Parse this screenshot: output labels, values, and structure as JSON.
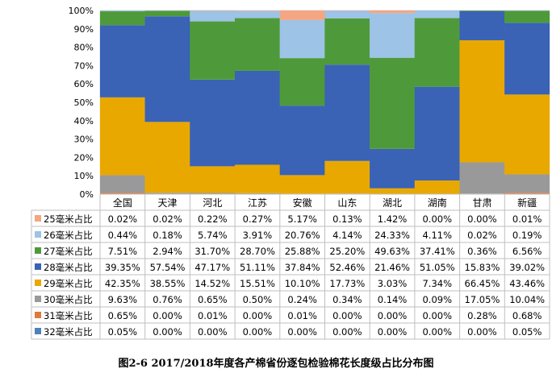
{
  "chart_data": {
    "type": "bar",
    "stacked": true,
    "percent": true,
    "grid": true,
    "ylim": [
      0,
      100
    ],
    "yticks": [
      "0%",
      "10%",
      "20%",
      "30%",
      "40%",
      "50%",
      "60%",
      "70%",
      "80%",
      "90%",
      "100%"
    ],
    "categories": [
      "全国",
      "天津",
      "河北",
      "江苏",
      "安徽",
      "山东",
      "湖北",
      "湖南",
      "甘肃",
      "新疆"
    ],
    "series": [
      {
        "name": "25毫米占比",
        "color": "#f4a582",
        "labels": [
          "0.02%",
          "0.02%",
          "0.22%",
          "0.27%",
          "5.17%",
          "0.13%",
          "1.42%",
          "0.00%",
          "0.00%",
          "0.01%"
        ],
        "values": [
          0.02,
          0.02,
          0.22,
          0.27,
          5.17,
          0.13,
          1.42,
          0.0,
          0.0,
          0.01
        ]
      },
      {
        "name": "26毫米占比",
        "color": "#9dc3e6",
        "labels": [
          "0.44%",
          "0.18%",
          "5.74%",
          "3.91%",
          "20.76%",
          "4.14%",
          "24.33%",
          "4.11%",
          "0.02%",
          "0.19%"
        ],
        "values": [
          0.44,
          0.18,
          5.74,
          3.91,
          20.76,
          4.14,
          24.33,
          4.11,
          0.02,
          0.19
        ]
      },
      {
        "name": "27毫米占比",
        "color": "#4e9a3a",
        "labels": [
          "7.51%",
          "2.94%",
          "31.70%",
          "28.70%",
          "25.88%",
          "25.20%",
          "49.63%",
          "37.41%",
          "0.36%",
          "6.56%"
        ],
        "values": [
          7.51,
          2.94,
          31.7,
          28.7,
          25.88,
          25.2,
          49.63,
          37.41,
          0.36,
          6.56
        ]
      },
      {
        "name": "28毫米占比",
        "color": "#3a62b5",
        "labels": [
          "39.35%",
          "57.54%",
          "47.17%",
          "51.11%",
          "37.84%",
          "52.46%",
          "21.46%",
          "51.05%",
          "15.83%",
          "39.02%"
        ],
        "values": [
          39.35,
          57.54,
          47.17,
          51.11,
          37.84,
          52.46,
          21.46,
          51.05,
          15.83,
          39.02
        ]
      },
      {
        "name": "29毫米占比",
        "color": "#e8a800",
        "labels": [
          "42.35%",
          "38.55%",
          "14.52%",
          "15.51%",
          "10.10%",
          "17.73%",
          "3.03%",
          "7.34%",
          "66.45%",
          "43.46%"
        ],
        "values": [
          42.35,
          38.55,
          14.52,
          15.51,
          10.1,
          17.73,
          3.03,
          7.34,
          66.45,
          43.46
        ]
      },
      {
        "name": "30毫米占比",
        "color": "#999999",
        "labels": [
          "9.63%",
          "0.76%",
          "0.65%",
          "0.50%",
          "0.24%",
          "0.34%",
          "0.14%",
          "0.09%",
          "17.05%",
          "10.04%"
        ],
        "values": [
          9.63,
          0.76,
          0.65,
          0.5,
          0.24,
          0.34,
          0.14,
          0.09,
          17.05,
          10.04
        ]
      },
      {
        "name": "31毫米占比",
        "color": "#e07a3a",
        "labels": [
          "0.65%",
          "0.00%",
          "0.01%",
          "0.00%",
          "0.01%",
          "0.00%",
          "0.00%",
          "0.00%",
          "0.28%",
          "0.68%"
        ],
        "values": [
          0.65,
          0.0,
          0.01,
          0.0,
          0.01,
          0.0,
          0.0,
          0.0,
          0.28,
          0.68
        ]
      },
      {
        "name": "32毫米占比",
        "color": "#4f81bd",
        "labels": [
          "0.05%",
          "0.00%",
          "0.00%",
          "0.00%",
          "0.00%",
          "0.00%",
          "0.00%",
          "0.00%",
          "0.00%",
          "0.05%"
        ],
        "values": [
          0.05,
          0.0,
          0.0,
          0.0,
          0.0,
          0.0,
          0.0,
          0.0,
          0.0,
          0.05
        ]
      }
    ],
    "caption": "图2-6 2017/2018年度各产棉省份逐包检验棉花长度级占比分布图"
  }
}
